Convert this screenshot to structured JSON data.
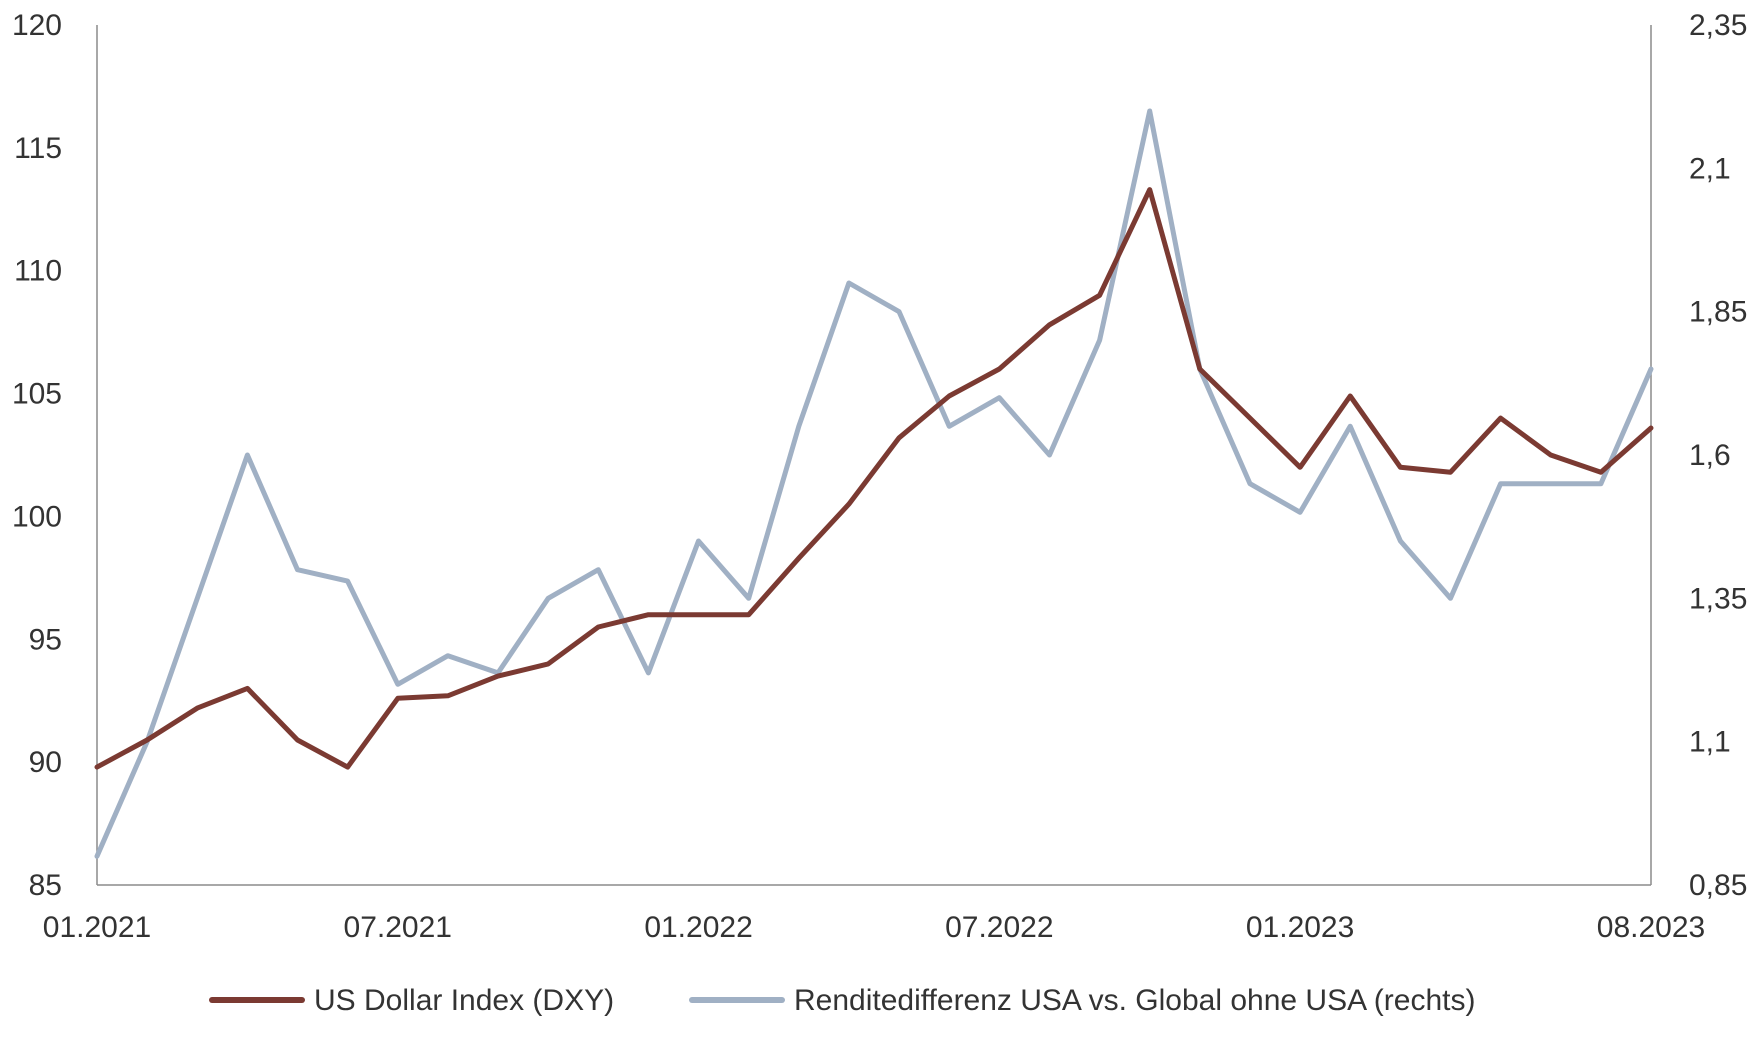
{
  "chart_data": {
    "type": "line",
    "title": "",
    "xlabel": "",
    "ylabel_left": "",
    "ylabel_right": "",
    "x_tick_labels": [
      "01.2021",
      "07.2021",
      "01.2022",
      "07.2022",
      "01.2023",
      "08.2023"
    ],
    "x_tick_dates": [
      "2021-01",
      "2021-07",
      "2022-01",
      "2022-07",
      "2023-01",
      "2023-08"
    ],
    "x_range": [
      "2021-01",
      "2023-08"
    ],
    "y_left": {
      "min": 85,
      "max": 120,
      "ticks": [
        "120",
        "115",
        "110",
        "105",
        "100",
        "95",
        "90",
        "85"
      ]
    },
    "y_right": {
      "min": 0.85,
      "max": 2.35,
      "ticks": [
        "2,35",
        "2,1",
        "1,85",
        "1,6",
        "1,35",
        "1,1",
        "0,85"
      ]
    },
    "grid": false,
    "legend_position": "bottom",
    "series": [
      {
        "name": "US Dollar Index (DXY)",
        "axis": "left",
        "color": "#7b3a32",
        "x": [
          "2021-01",
          "2021-02",
          "2021-03",
          "2021-04",
          "2021-05",
          "2021-06",
          "2021-07",
          "2021-08",
          "2021-09",
          "2021-10",
          "2021-11",
          "2021-12",
          "2022-01",
          "2022-02",
          "2022-03",
          "2022-04",
          "2022-05",
          "2022-06",
          "2022-07",
          "2022-08",
          "2022-09",
          "2022-10",
          "2022-11",
          "2022-12",
          "2023-01",
          "2023-02",
          "2023-03",
          "2023-04",
          "2023-05",
          "2023-06",
          "2023-07",
          "2023-08"
        ],
        "values": [
          89.8,
          90.9,
          92.2,
          93.0,
          90.9,
          89.8,
          92.6,
          92.7,
          93.5,
          94.0,
          95.5,
          96.0,
          96.0,
          96.0,
          98.3,
          100.5,
          103.2,
          104.9,
          106.0,
          107.8,
          109.0,
          113.3,
          106.0,
          104.0,
          102.0,
          104.9,
          102.0,
          101.8,
          104.0,
          102.5,
          101.8,
          103.6
        ]
      },
      {
        "name": "Renditedifferenz USA vs. Global ohne USA (rechts)",
        "axis": "right",
        "color": "#a0b0c4",
        "x": [
          "2021-01",
          "2021-02",
          "2021-03",
          "2021-04",
          "2021-05",
          "2021-06",
          "2021-07",
          "2021-08",
          "2021-09",
          "2021-10",
          "2021-11",
          "2021-12",
          "2022-01",
          "2022-02",
          "2022-03",
          "2022-04",
          "2022-05",
          "2022-06",
          "2022-07",
          "2022-08",
          "2022-09",
          "2022-10",
          "2022-11",
          "2022-12",
          "2023-01",
          "2023-02",
          "2023-03",
          "2023-04",
          "2023-05",
          "2023-06",
          "2023-07",
          "2023-08"
        ],
        "values": [
          0.9,
          1.1,
          1.35,
          1.6,
          1.4,
          1.38,
          1.2,
          1.25,
          1.22,
          1.35,
          1.4,
          1.22,
          1.45,
          1.35,
          1.65,
          1.9,
          1.85,
          1.65,
          1.7,
          1.6,
          1.8,
          2.2,
          1.75,
          1.55,
          1.5,
          1.65,
          1.45,
          1.35,
          1.55,
          1.55,
          1.55,
          1.75
        ]
      }
    ]
  }
}
